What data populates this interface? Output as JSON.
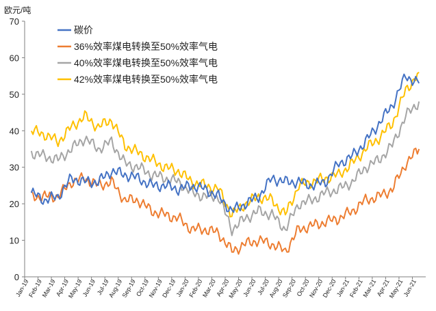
{
  "chart_data": {
    "type": "line",
    "title": "",
    "ylabel": "欧元/吨",
    "xlabel": "",
    "ylim": [
      0,
      70
    ],
    "yticks": [
      0,
      10,
      20,
      30,
      40,
      50,
      60,
      70
    ],
    "grid": false,
    "legend_position": "top-left",
    "x_tick_labels": [
      "Jan-19",
      "Feb-19",
      "Mar-19",
      "Apr-19",
      "May-19",
      "Jun-19",
      "Jul-19",
      "Aug-19",
      "Sep-19",
      "Oct-19",
      "Nov-19",
      "Dec-19",
      "Jan-20",
      "Feb-20",
      "Mar-20",
      "Apr-20",
      "May-20",
      "Jun-20",
      "Jul-20",
      "Aug-20",
      "Sep-20",
      "Oct-20",
      "Nov-20",
      "Dec-20",
      "Jan-21",
      "Feb-21",
      "Mar-21",
      "Apr-21",
      "May-21",
      "Jun-21"
    ],
    "x": [
      "Jan-19",
      "Feb-19",
      "Mar-19",
      "Apr-19",
      "May-19",
      "Jun-19",
      "Jul-19",
      "Aug-19",
      "Sep-19",
      "Oct-19",
      "Nov-19",
      "Dec-19",
      "Jan-20",
      "Feb-20",
      "Mar-20",
      "Apr-20",
      "May-20",
      "Jun-20",
      "Jul-20",
      "Aug-20",
      "Sep-20",
      "Oct-20",
      "Nov-20",
      "Dec-20",
      "Jan-21",
      "Feb-21",
      "Mar-21",
      "Apr-21",
      "May-21",
      "Jun-21"
    ],
    "series": [
      {
        "name": "碳价",
        "color": "#4472C4",
        "values": [
          23,
          21,
          22,
          27,
          26,
          26,
          29,
          28,
          27,
          25,
          25,
          24,
          25,
          24,
          22,
          18,
          20,
          22,
          27,
          26,
          26,
          25,
          26,
          31,
          33,
          37,
          42,
          47,
          55,
          53
        ]
      },
      {
        "name": "36%效率煤电转换至50%效率气电",
        "color": "#ED7D31",
        "values": [
          22,
          22,
          22,
          26,
          27,
          25,
          26,
          21,
          21,
          18,
          17,
          16,
          13,
          13,
          12,
          7,
          9,
          10,
          9,
          7,
          13,
          14,
          15,
          16,
          18,
          21,
          22,
          24,
          31,
          35
        ]
      },
      {
        "name": "40%效率煤电转换至50%效率气电",
        "color": "#A5A5A5",
        "values": [
          34,
          33,
          32,
          35,
          38,
          35,
          37,
          31,
          30,
          28,
          27,
          26,
          23,
          22,
          22,
          13,
          16,
          18,
          17,
          13,
          20,
          21,
          23,
          24,
          26,
          30,
          32,
          36,
          44,
          48
        ]
      },
      {
        "name": "42%效率煤电转换至50%效率气电",
        "color": "#FFC000",
        "values": [
          40,
          39,
          37,
          41,
          44,
          41,
          43,
          36,
          34,
          32,
          30,
          29,
          26,
          25,
          24,
          17,
          20,
          22,
          21,
          17,
          25,
          26,
          27,
          28,
          31,
          35,
          38,
          42,
          51,
          56
        ]
      }
    ]
  }
}
